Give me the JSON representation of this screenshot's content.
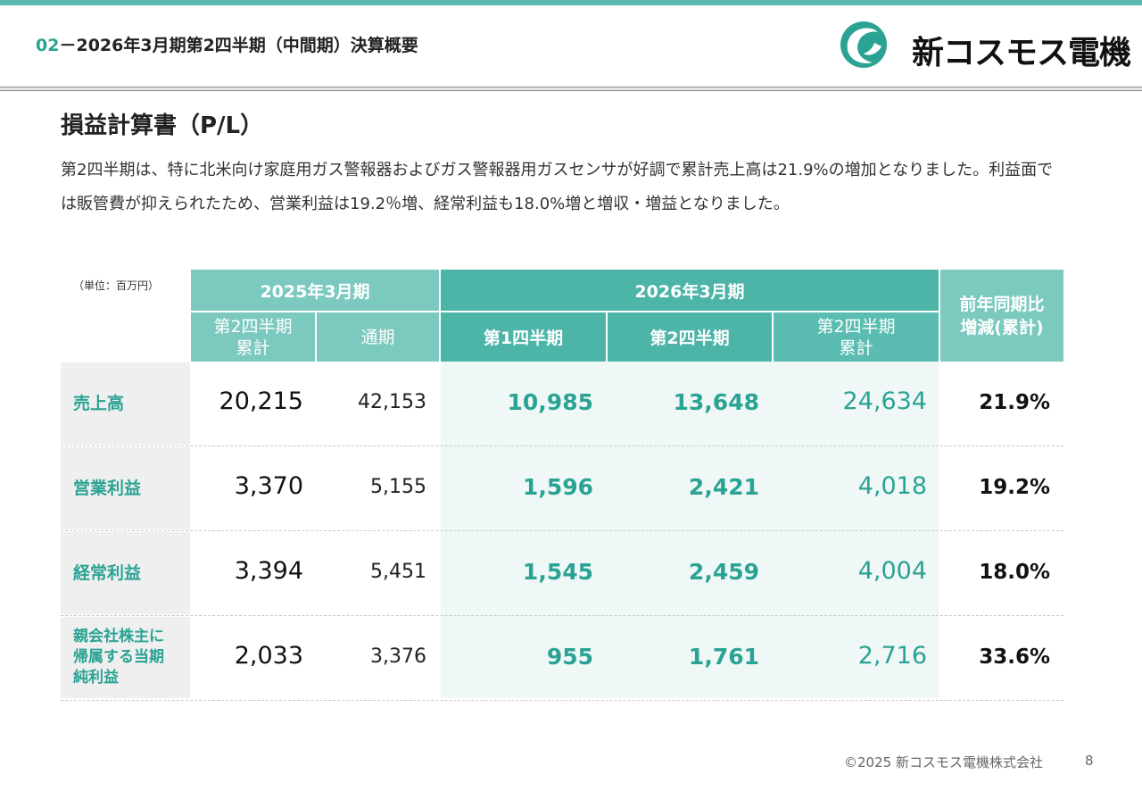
{
  "header": {
    "section_number": "02",
    "separator": "－",
    "title": "2026年3月期第2四半期（中間期）決算概要",
    "logo_text": "新コスモス電機",
    "logo_icon": "company-logo-icon",
    "accent_color": "#2aa394"
  },
  "section": {
    "title": "損益計算書（P/L）",
    "description": "第2四半期は、特に北米向け家庭用ガス警報器およびガス警報器用ガスセンサが好調で累計売上高は21.9%の増加となりました。利益面では販管費が抑えられたため、営業利益は19.2％増、経常利益も18.0%増と増収・増益となりました。"
  },
  "table": {
    "unit": "（単位：百万円）",
    "group_2025": "2025年3月期",
    "group_2026": "2026年3月期",
    "comparison_header": [
      "前年同期比",
      "増減(累計)"
    ],
    "sub_2025": [
      [
        "第2四半期",
        "累計"
      ],
      [
        "通期"
      ]
    ],
    "sub_2026": [
      [
        "第1四半期"
      ],
      [
        "第2四半期"
      ],
      [
        "第2四半期",
        "累計"
      ]
    ],
    "rows": [
      {
        "label": [
          "売上高"
        ],
        "h1_2025": "20,215",
        "fy_2025": "42,153",
        "q1_2026": "10,985",
        "q2_2026": "13,648",
        "h1_2026": "24,634",
        "change": "21.9%"
      },
      {
        "label": [
          "営業利益"
        ],
        "h1_2025": "3,370",
        "fy_2025": "5,155",
        "q1_2026": "1,596",
        "q2_2026": "2,421",
        "h1_2026": "4,018",
        "change": "19.2%"
      },
      {
        "label": [
          "経常利益"
        ],
        "h1_2025": "3,394",
        "fy_2025": "5,451",
        "q1_2026": "1,545",
        "q2_2026": "2,459",
        "h1_2026": "4,004",
        "change": "18.0%"
      },
      {
        "label": [
          "親会社株主に",
          "帰属する当期",
          "純利益"
        ],
        "h1_2025": "2,033",
        "fy_2025": "3,376",
        "q1_2026": "955",
        "q2_2026": "1,761",
        "h1_2026": "2,716",
        "change": "33.6%"
      }
    ]
  },
  "footer": {
    "copyright": "©2025 新コスモス電機株式会社",
    "page_number": "8"
  }
}
